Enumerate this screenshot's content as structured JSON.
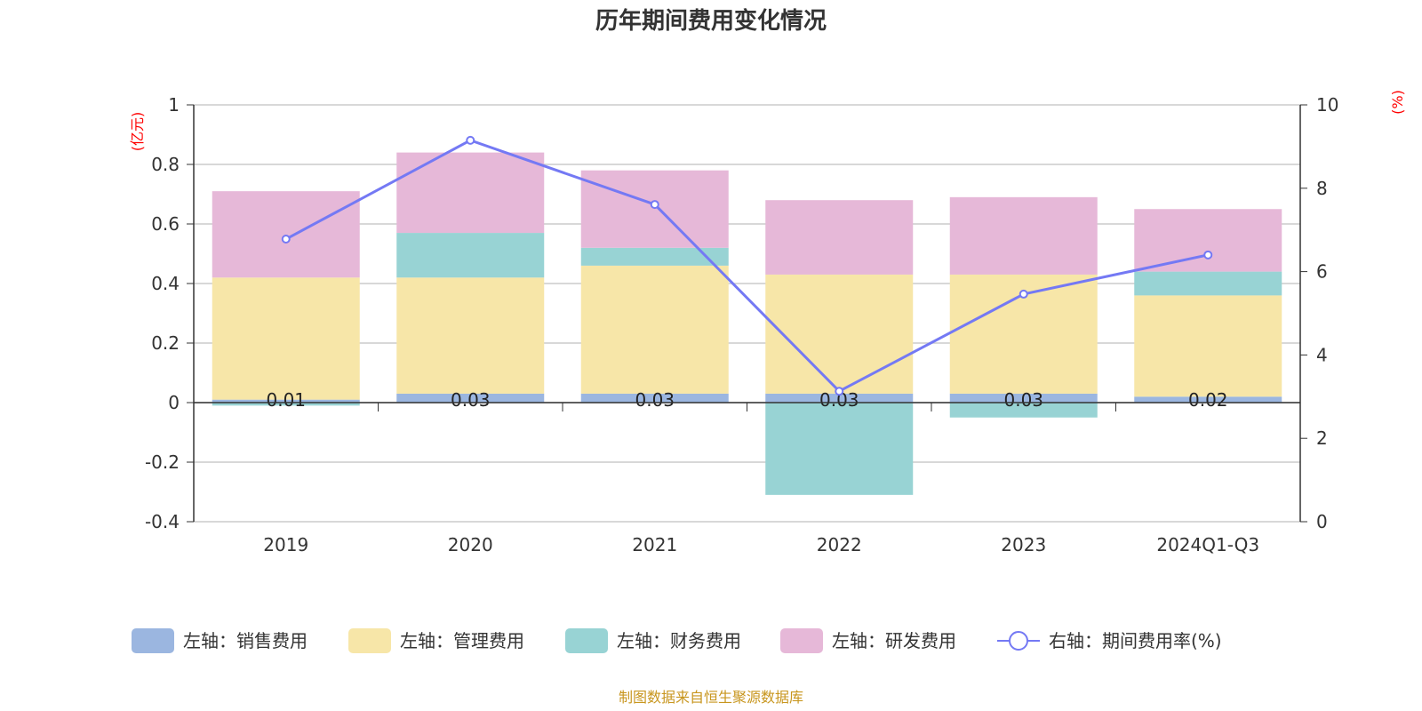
{
  "chart_data": {
    "type": "bar",
    "title": "历年期间费用变化情况",
    "left_axis_label": "(亿元)",
    "right_axis_label": "(%)",
    "categories": [
      "2019",
      "2020",
      "2021",
      "2022",
      "2023",
      "2024Q1-Q3"
    ],
    "left_ylim": [
      -0.4,
      1
    ],
    "left_ticks": [
      "-0.4",
      "-0.2",
      "0",
      "0.2",
      "0.4",
      "0.6",
      "0.8",
      "1"
    ],
    "right_ylim": [
      0,
      10
    ],
    "right_ticks": [
      "0",
      "2",
      "4",
      "6",
      "8",
      "10"
    ],
    "series": [
      {
        "name": "左轴：销售费用",
        "type": "bar",
        "color": "#9bb6e0",
        "values": [
          0.01,
          0.03,
          0.03,
          0.03,
          0.03,
          0.02
        ],
        "labels": [
          "0.01",
          "0.03",
          "0.03",
          "0.03",
          "0.03",
          "0.02"
        ]
      },
      {
        "name": "左轴：管理费用",
        "type": "bar",
        "color": "#f7e6a8",
        "values": [
          0.41,
          0.39,
          0.43,
          0.4,
          0.4,
          0.34
        ]
      },
      {
        "name": "左轴：财务费用",
        "type": "bar",
        "color": "#98d3d4",
        "values": [
          -0.01,
          0.15,
          0.06,
          -0.31,
          -0.05,
          0.08
        ]
      },
      {
        "name": "左轴：研发费用",
        "type": "bar",
        "color": "#e6b8d8",
        "values": [
          0.29,
          0.27,
          0.26,
          0.25,
          0.26,
          0.21
        ]
      },
      {
        "name": "右轴：期间费用率(%)",
        "type": "line",
        "color": "#7479f4",
        "values": [
          6.78,
          9.15,
          7.61,
          3.13,
          5.46,
          6.4
        ]
      }
    ],
    "legend_position": "bottom",
    "grid": true
  },
  "footer": "制图数据来自恒生聚源数据库"
}
